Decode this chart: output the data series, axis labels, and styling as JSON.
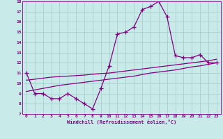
{
  "xlabel": "Windchill (Refroidissement éolien,°C)",
  "bg_color": "#c8eae8",
  "line_color": "#800080",
  "grid_color": "#a8cece",
  "hours": [
    0,
    1,
    2,
    3,
    4,
    5,
    6,
    7,
    8,
    9,
    10,
    11,
    12,
    13,
    14,
    15,
    16,
    17,
    18,
    19,
    20,
    21,
    22,
    23
  ],
  "main_line": [
    11.0,
    9.0,
    9.0,
    8.5,
    8.5,
    9.0,
    8.5,
    8.0,
    7.5,
    9.5,
    11.7,
    14.8,
    15.0,
    15.5,
    17.2,
    17.5,
    18.0,
    16.5,
    12.7,
    12.5,
    12.5,
    12.8,
    12.0,
    12.0
  ],
  "trend1": [
    9.2,
    9.35,
    9.5,
    9.65,
    9.8,
    9.9,
    10.0,
    10.1,
    10.2,
    10.3,
    10.4,
    10.5,
    10.6,
    10.7,
    10.85,
    11.0,
    11.1,
    11.2,
    11.3,
    11.45,
    11.6,
    11.7,
    11.85,
    12.0
  ],
  "trend2": [
    10.3,
    10.4,
    10.5,
    10.6,
    10.65,
    10.7,
    10.75,
    10.8,
    10.88,
    10.95,
    11.0,
    11.1,
    11.2,
    11.3,
    11.4,
    11.5,
    11.6,
    11.7,
    11.8,
    11.9,
    12.0,
    12.1,
    12.2,
    12.35
  ],
  "ylim": [
    7,
    18
  ],
  "xlim": [
    0,
    23
  ],
  "yticks": [
    7,
    8,
    9,
    10,
    11,
    12,
    13,
    14,
    15,
    16,
    17,
    18
  ],
  "xticks": [
    0,
    1,
    2,
    3,
    4,
    5,
    6,
    7,
    8,
    9,
    10,
    11,
    12,
    13,
    14,
    15,
    16,
    17,
    18,
    19,
    20,
    21,
    22,
    23
  ]
}
